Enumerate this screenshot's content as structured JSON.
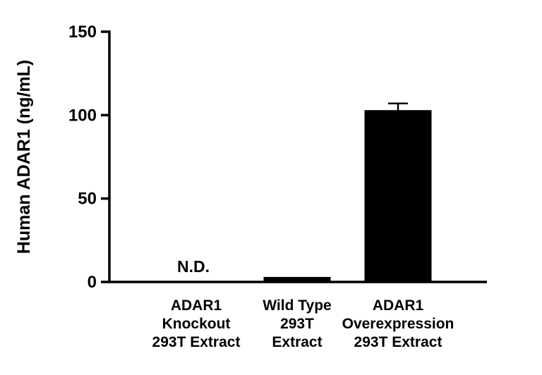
{
  "chart_data": {
    "type": "bar",
    "title": "",
    "xlabel": "",
    "ylabel": "Human ADAR1 (ng/mL)",
    "ylim": [
      0,
      150
    ],
    "yticks": [
      0,
      50,
      100,
      150
    ],
    "grid": false,
    "legend": "none",
    "bar_color": "#000000",
    "axis_color": "#000000",
    "background_color": "#ffffff",
    "categories": [
      "ADAR1 Knockout 293T Extract",
      "Wild Type 293T Extract",
      "ADAR1 Overexpression 293T Extract"
    ],
    "category_lines": [
      [
        "ADAR1",
        "Knockout",
        "293T Extract"
      ],
      [
        "Wild Type",
        "293T",
        "Extract"
      ],
      [
        "ADAR1",
        "Overexpression",
        "293T Extract"
      ]
    ],
    "values": [
      null,
      3,
      103
    ],
    "errors": [
      null,
      null,
      4
    ],
    "not_detected_label": "N.D.",
    "not_detected_index": 0
  }
}
